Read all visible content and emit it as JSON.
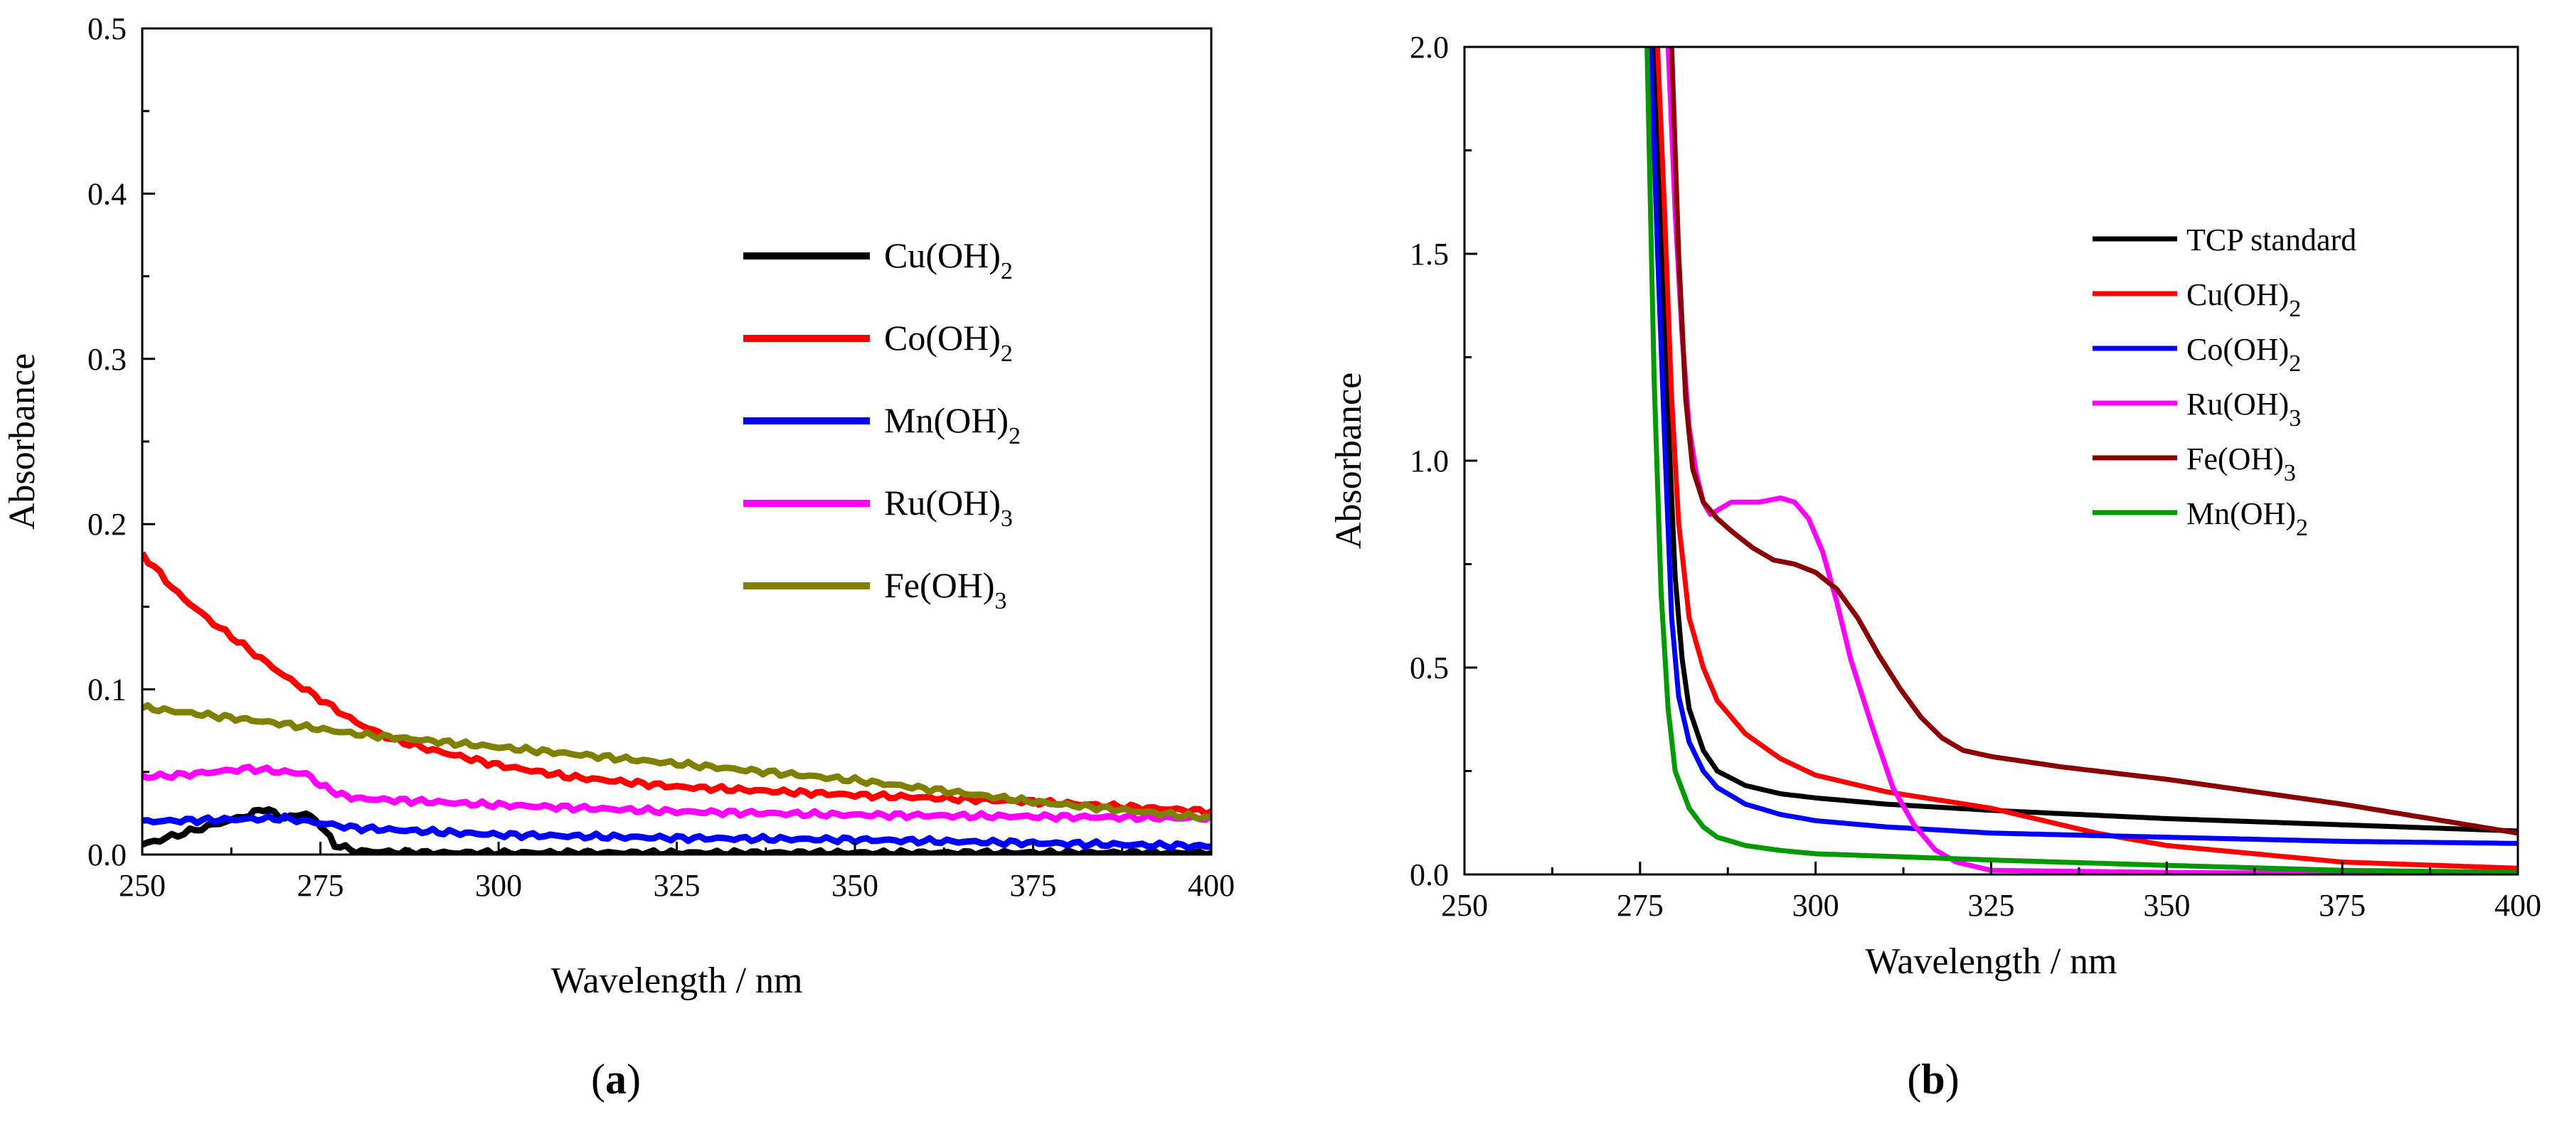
{
  "chart_data": [
    {
      "type": "line",
      "panel": "(a)",
      "xlabel": "Wavelength / nm",
      "ylabel": "Absorbance",
      "xlim": [
        250,
        400
      ],
      "ylim": [
        0,
        0.5
      ],
      "xticks": [
        "250",
        "275",
        "300",
        "325",
        "350",
        "375",
        "400"
      ],
      "yticks": [
        "0.0",
        "0.1",
        "0.2",
        "0.3",
        "0.4",
        "0.5"
      ],
      "legend_position": "center-right",
      "series": [
        {
          "name": "Cu(OH)",
          "subscript": "2",
          "color": "#000000",
          "x": [
            250,
            255,
            260,
            265,
            267,
            270,
            273,
            275,
            277,
            280,
            290,
            300,
            325,
            350,
            375,
            400
          ],
          "y": [
            0.006,
            0.012,
            0.018,
            0.024,
            0.028,
            0.022,
            0.025,
            0.018,
            0.006,
            0.002,
            0.001,
            0.001,
            0.001,
            0.001,
            0.001,
            0.001
          ]
        },
        {
          "name": "Co(OH)",
          "subscript": "2",
          "color": "#ff0000",
          "x": [
            250,
            255,
            260,
            265,
            270,
            275,
            280,
            285,
            290,
            300,
            310,
            325,
            340,
            350,
            375,
            400
          ],
          "y": [
            0.182,
            0.158,
            0.14,
            0.124,
            0.108,
            0.094,
            0.08,
            0.07,
            0.064,
            0.054,
            0.047,
            0.041,
            0.038,
            0.036,
            0.032,
            0.026
          ]
        },
        {
          "name": "Mn(OH)",
          "subscript": "2",
          "color": "#0000ff",
          "x": [
            250,
            260,
            270,
            275,
            280,
            290,
            300,
            325,
            350,
            375,
            400
          ],
          "y": [
            0.02,
            0.021,
            0.022,
            0.019,
            0.016,
            0.014,
            0.012,
            0.01,
            0.009,
            0.007,
            0.005
          ]
        },
        {
          "name": "Ru(OH)",
          "subscript": "3",
          "color": "#ff00ff",
          "x": [
            250,
            255,
            260,
            265,
            270,
            273,
            275,
            278,
            280,
            290,
            300,
            325,
            350,
            375,
            400
          ],
          "y": [
            0.047,
            0.048,
            0.05,
            0.052,
            0.05,
            0.049,
            0.042,
            0.036,
            0.034,
            0.032,
            0.03,
            0.026,
            0.024,
            0.023,
            0.022
          ]
        },
        {
          "name": "Fe(OH)",
          "subscript": "3",
          "color": "#808000",
          "x": [
            250,
            260,
            270,
            280,
            290,
            300,
            310,
            325,
            350,
            375,
            400
          ],
          "y": [
            0.089,
            0.084,
            0.079,
            0.073,
            0.069,
            0.065,
            0.061,
            0.055,
            0.045,
            0.032,
            0.022
          ]
        }
      ]
    },
    {
      "type": "line",
      "panel": "(b)",
      "xlabel": "Wavelength / nm",
      "ylabel": "Absorbance",
      "xlim": [
        250,
        400
      ],
      "ylim": [
        0,
        2.0
      ],
      "xticks": [
        "250",
        "275",
        "300",
        "325",
        "350",
        "375",
        "400"
      ],
      "yticks": [
        "0.0",
        "0.5",
        "1.0",
        "1.5",
        "2.0"
      ],
      "legend_position": "top-right",
      "series": [
        {
          "name": "TCP standard",
          "subscript": "",
          "color": "#000000",
          "x": [
            277,
            278,
            279,
            280,
            281,
            282,
            284,
            286,
            290,
            295,
            300,
            310,
            325,
            350,
            375,
            400
          ],
          "y": [
            2.0,
            1.55,
            1.1,
            0.72,
            0.52,
            0.4,
            0.3,
            0.25,
            0.215,
            0.195,
            0.185,
            0.17,
            0.155,
            0.135,
            0.12,
            0.105
          ]
        },
        {
          "name": "Cu(OH)",
          "subscript": "2",
          "color": "#ff0000",
          "x": [
            277.5,
            278.5,
            279.5,
            280.5,
            282,
            284,
            286,
            290,
            295,
            300,
            310,
            325,
            340,
            350,
            375,
            400
          ],
          "y": [
            2.0,
            1.6,
            1.15,
            0.85,
            0.62,
            0.5,
            0.42,
            0.34,
            0.28,
            0.24,
            0.2,
            0.16,
            0.1,
            0.07,
            0.03,
            0.015
          ]
        },
        {
          "name": "Co(OH)",
          "subscript": "2",
          "color": "#0000ff",
          "x": [
            276.5,
            277.5,
            278.5,
            279.5,
            280.5,
            282,
            284,
            286,
            290,
            295,
            300,
            310,
            325,
            350,
            375,
            400
          ],
          "y": [
            2.0,
            1.5,
            1.05,
            0.62,
            0.43,
            0.32,
            0.25,
            0.21,
            0.17,
            0.145,
            0.13,
            0.115,
            0.1,
            0.09,
            0.08,
            0.075
          ]
        },
        {
          "name": "Ru(OH)",
          "subscript": "3",
          "color": "#ff00ff",
          "x": [
            279,
            280,
            281,
            282,
            283,
            284,
            285,
            286,
            288,
            292,
            295,
            297,
            299,
            301,
            303,
            305,
            308,
            311,
            314,
            317,
            320,
            325,
            350,
            400
          ],
          "y": [
            2.0,
            1.6,
            1.3,
            1.08,
            0.97,
            0.9,
            0.87,
            0.88,
            0.9,
            0.9,
            0.91,
            0.9,
            0.86,
            0.78,
            0.66,
            0.52,
            0.36,
            0.21,
            0.12,
            0.06,
            0.03,
            0.01,
            0.005,
            0.0
          ]
        },
        {
          "name": "Fe(OH)",
          "subscript": "3",
          "color": "#8b0000",
          "x": [
            279.5,
            280.5,
            281.5,
            282.5,
            284,
            286,
            288,
            291,
            294,
            297,
            300,
            303,
            306,
            309,
            312,
            315,
            318,
            321,
            325,
            335,
            350,
            375,
            400
          ],
          "y": [
            2.0,
            1.5,
            1.15,
            0.98,
            0.9,
            0.86,
            0.83,
            0.79,
            0.76,
            0.75,
            0.73,
            0.69,
            0.62,
            0.53,
            0.45,
            0.38,
            0.33,
            0.3,
            0.285,
            0.26,
            0.23,
            0.17,
            0.1
          ]
        },
        {
          "name": "Mn(OH)",
          "subscript": "2",
          "color": "#009900",
          "x": [
            276,
            277,
            278,
            279,
            280,
            282,
            284,
            286,
            290,
            295,
            300,
            325,
            350,
            375,
            400
          ],
          "y": [
            2.0,
            1.2,
            0.68,
            0.4,
            0.25,
            0.16,
            0.115,
            0.09,
            0.07,
            0.058,
            0.05,
            0.035,
            0.022,
            0.01,
            0.005
          ]
        }
      ]
    }
  ]
}
